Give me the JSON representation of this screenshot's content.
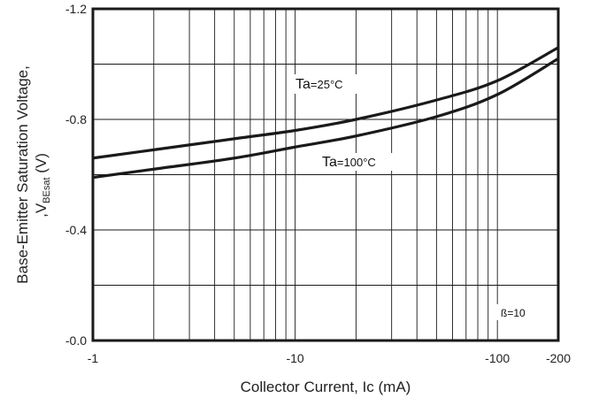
{
  "chart_data": {
    "type": "line",
    "xscale": "log",
    "xlim": [
      -1,
      -200
    ],
    "ylim": [
      -0.0,
      -1.2
    ],
    "xlabel": "Collector Current, Ic (mA)",
    "ylabel_line1": "Base-Emitter Saturation Voltage,",
    "ylabel_line2_prefix": ",V",
    "ylabel_line2_sub": "BEsat",
    "ylabel_line2_suffix": " (V)",
    "x_ticks": [
      "-1",
      "-10",
      "-100",
      "-200"
    ],
    "y_ticks": [
      "-1.2",
      "-0.8",
      "-0.4",
      "-0.0"
    ],
    "grid": true,
    "series": [
      {
        "name": "Ta=25°C",
        "label_main": "Ta",
        "label_cond": "=25°C",
        "x": [
          -1,
          -2,
          -5,
          -10,
          -20,
          -50,
          -100,
          -200
        ],
        "y": [
          -0.66,
          -0.69,
          -0.73,
          -0.76,
          -0.8,
          -0.87,
          -0.94,
          -1.06
        ]
      },
      {
        "name": "Ta=100°C",
        "label_main": "Ta",
        "label_cond": "=100°C",
        "x": [
          -1,
          -2,
          -5,
          -10,
          -20,
          -50,
          -100,
          -200
        ],
        "y": [
          -0.59,
          -0.62,
          -0.66,
          -0.7,
          -0.74,
          -0.81,
          -0.89,
          -1.02
        ]
      }
    ],
    "annotations": [
      {
        "text": "ß=10"
      }
    ],
    "colors": {
      "line": "#1a1a1a",
      "grid": "#1a1a1a",
      "frame": "#1a1a1a"
    }
  }
}
